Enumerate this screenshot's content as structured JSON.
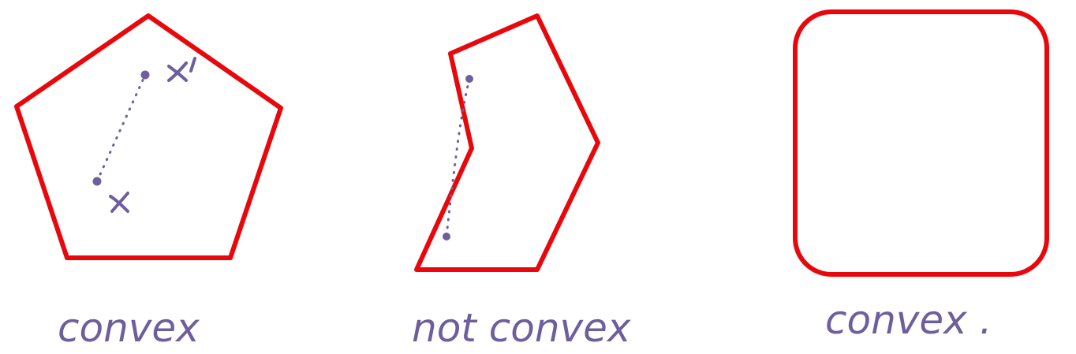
{
  "colors": {
    "outline": "#e8080c",
    "ink": "#6e5f9c",
    "background": "#ffffff"
  },
  "figures": [
    {
      "shape": "pentagon",
      "caption": "convex",
      "markers": [
        "x",
        "x'"
      ]
    },
    {
      "shape": "concave-polygon",
      "caption": "not convex"
    },
    {
      "shape": "rounded-square",
      "caption": "convex ."
    }
  ]
}
